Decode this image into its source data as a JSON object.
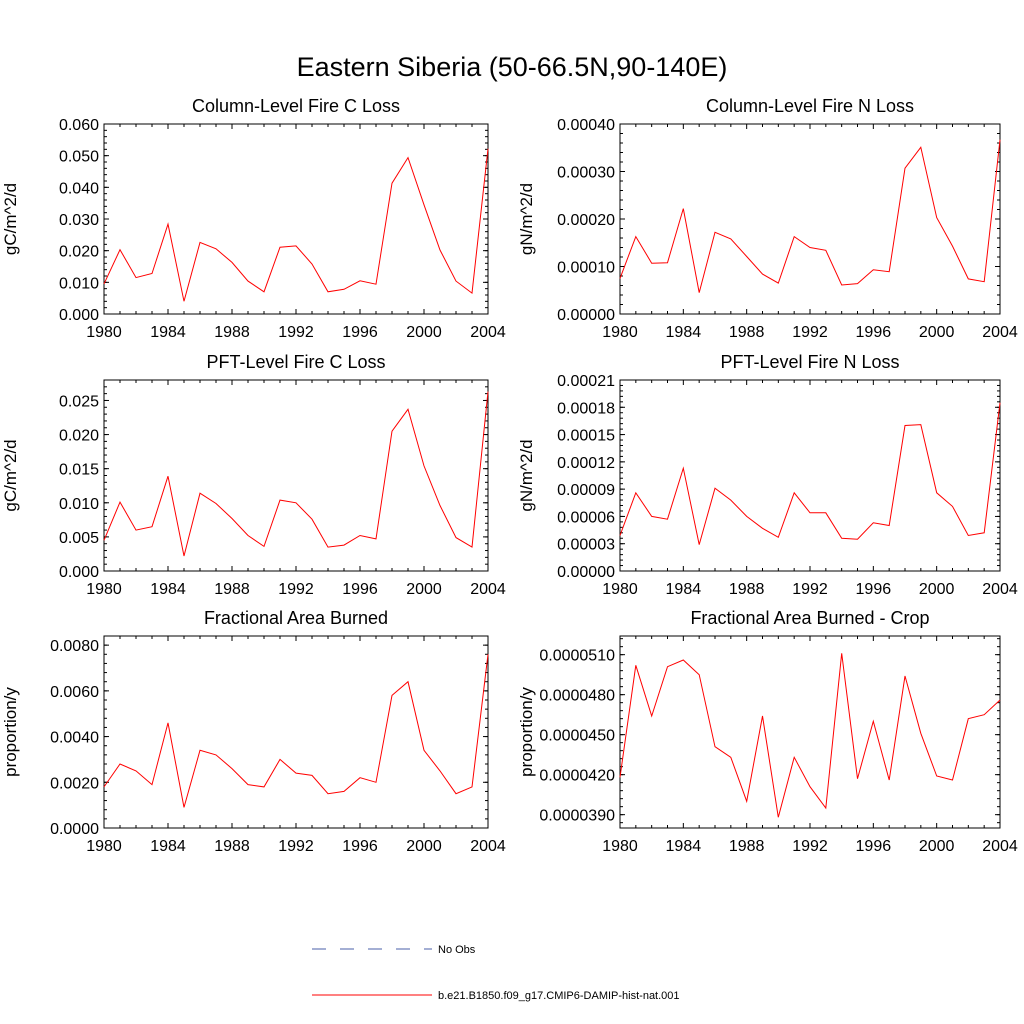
{
  "figure_title": "Eastern Siberia (50-66.5N,90-140E)",
  "colors": {
    "model": "#ff0000",
    "obs": "#4a5fa8",
    "frame": "#000000"
  },
  "legend": {
    "obs_label": "No Obs",
    "model_label": "b.e21.B1850.f09_g17.CMIP6-DAMIP-hist-nat.001"
  },
  "chart_data": [
    {
      "type": "line",
      "title": "Column-Level Fire C Loss",
      "ylabel": "gC/m^2/d",
      "xlim": [
        1980,
        2004
      ],
      "ylim": [
        0,
        0.06
      ],
      "xticks": [
        1980,
        1984,
        1988,
        1992,
        1996,
        2000,
        2004
      ],
      "xtick_labels": [
        "1980",
        "1984",
        "1988",
        "1992",
        "1996",
        "2000",
        "2004"
      ],
      "yticks": [
        0,
        0.01,
        0.02,
        0.03,
        0.04,
        0.05,
        0.06
      ],
      "ytick_labels": [
        "0.000",
        "0.010",
        "0.020",
        "0.030",
        "0.040",
        "0.050",
        "0.060"
      ],
      "x": [
        1980,
        1981,
        1982,
        1983,
        1984,
        1985,
        1986,
        1987,
        1988,
        1989,
        1990,
        1991,
        1992,
        1993,
        1994,
        1995,
        1996,
        1997,
        1998,
        1999,
        2000,
        2001,
        2002,
        2003,
        2004
      ],
      "series": [
        {
          "values": [
            0.0095,
            0.0203,
            0.0115,
            0.0128,
            0.0284,
            0.004,
            0.0226,
            0.0206,
            0.0163,
            0.0104,
            0.007,
            0.0211,
            0.0215,
            0.0158,
            0.007,
            0.0078,
            0.0105,
            0.0094,
            0.0413,
            0.0494,
            0.0345,
            0.0202,
            0.0104,
            0.0066,
            0.0522
          ]
        }
      ]
    },
    {
      "type": "line",
      "title": "Column-Level Fire N Loss",
      "ylabel": "gN/m^2/d",
      "xlim": [
        1980,
        2004
      ],
      "ylim": [
        0,
        0.0004
      ],
      "xticks": [
        1980,
        1984,
        1988,
        1992,
        1996,
        2000,
        2004
      ],
      "xtick_labels": [
        "1980",
        "1984",
        "1988",
        "1992",
        "1996",
        "2000",
        "2004"
      ],
      "yticks": [
        0,
        0.0001,
        0.0002,
        0.0003,
        0.0004
      ],
      "ytick_labels": [
        "0.00000",
        "0.00010",
        "0.00020",
        "0.00030",
        "0.00040"
      ],
      "x": [
        1980,
        1981,
        1982,
        1983,
        1984,
        1985,
        1986,
        1987,
        1988,
        1989,
        1990,
        1991,
        1992,
        1993,
        1994,
        1995,
        1996,
        1997,
        1998,
        1999,
        2000,
        2001,
        2002,
        2003,
        2004
      ],
      "series": [
        {
          "values": [
            7.5e-05,
            0.000163,
            0.000107,
            0.000108,
            0.000222,
            4.5e-05,
            0.000172,
            0.000158,
            0.000121,
            8.4e-05,
            6.5e-05,
            0.000163,
            0.00014,
            0.000134,
            6.1e-05,
            6.4e-05,
            9.3e-05,
            8.9e-05,
            0.000307,
            0.000351,
            0.000203,
            0.000143,
            7.4e-05,
            6.8e-05,
            0.000367
          ]
        }
      ]
    },
    {
      "type": "line",
      "title": "PFT-Level Fire C Loss",
      "ylabel": "gC/m^2/d",
      "xlim": [
        1980,
        2004
      ],
      "ylim": [
        0,
        0.028
      ],
      "xticks": [
        1980,
        1984,
        1988,
        1992,
        1996,
        2000,
        2004
      ],
      "xtick_labels": [
        "1980",
        "1984",
        "1988",
        "1992",
        "1996",
        "2000",
        "2004"
      ],
      "yticks": [
        0,
        0.005,
        0.01,
        0.015,
        0.02,
        0.025
      ],
      "ytick_labels": [
        "0.000",
        "0.005",
        "0.010",
        "0.015",
        "0.020",
        "0.025"
      ],
      "x": [
        1980,
        1981,
        1982,
        1983,
        1984,
        1985,
        1986,
        1987,
        1988,
        1989,
        1990,
        1991,
        1992,
        1993,
        1994,
        1995,
        1996,
        1997,
        1998,
        1999,
        2000,
        2001,
        2002,
        2003,
        2004
      ],
      "series": [
        {
          "values": [
            0.0045,
            0.0101,
            0.006,
            0.0065,
            0.0139,
            0.0022,
            0.0114,
            0.0099,
            0.0077,
            0.0052,
            0.0036,
            0.0104,
            0.01,
            0.0076,
            0.0035,
            0.0038,
            0.0052,
            0.0047,
            0.0205,
            0.0237,
            0.0154,
            0.0096,
            0.0049,
            0.0035,
            0.0263
          ]
        }
      ]
    },
    {
      "type": "line",
      "title": "PFT-Level Fire N Loss",
      "ylabel": "gN/m^2/d",
      "xlim": [
        1980,
        2004
      ],
      "ylim": [
        0,
        0.00021
      ],
      "xticks": [
        1980,
        1984,
        1988,
        1992,
        1996,
        2000,
        2004
      ],
      "xtick_labels": [
        "1980",
        "1984",
        "1988",
        "1992",
        "1996",
        "2000",
        "2004"
      ],
      "yticks": [
        0,
        3e-05,
        6e-05,
        9e-05,
        0.00012,
        0.00015,
        0.00018,
        0.00021
      ],
      "ytick_labels": [
        "0.00000",
        "0.00003",
        "0.00006",
        "0.00009",
        "0.00012",
        "0.00015",
        "0.00018",
        "0.00021"
      ],
      "x": [
        1980,
        1981,
        1982,
        1983,
        1984,
        1985,
        1986,
        1987,
        1988,
        1989,
        1990,
        1991,
        1992,
        1993,
        1994,
        1995,
        1996,
        1997,
        1998,
        1999,
        2000,
        2001,
        2002,
        2003,
        2004
      ],
      "series": [
        {
          "values": [
            3.9e-05,
            8.6e-05,
            6e-05,
            5.7e-05,
            0.000113,
            2.9e-05,
            9.1e-05,
            7.8e-05,
            6e-05,
            4.7e-05,
            3.7e-05,
            8.6e-05,
            6.4e-05,
            6.4e-05,
            3.6e-05,
            3.5e-05,
            5.3e-05,
            5e-05,
            0.00016,
            0.000161,
            8.6e-05,
            7.1e-05,
            3.9e-05,
            4.2e-05,
            0.000185
          ]
        }
      ]
    },
    {
      "type": "line",
      "title": "Fractional Area Burned",
      "ylabel": "proportion/y",
      "xlim": [
        1980,
        2004
      ],
      "ylim": [
        0,
        0.0084
      ],
      "xticks": [
        1980,
        1984,
        1988,
        1992,
        1996,
        2000,
        2004
      ],
      "xtick_labels": [
        "1980",
        "1984",
        "1988",
        "1992",
        "1996",
        "2000",
        "2004"
      ],
      "yticks": [
        0,
        0.002,
        0.004,
        0.006,
        0.008
      ],
      "ytick_labels": [
        "0.0000",
        "0.0020",
        "0.0040",
        "0.0060",
        "0.0080"
      ],
      "x": [
        1980,
        1981,
        1982,
        1983,
        1984,
        1985,
        1986,
        1987,
        1988,
        1989,
        1990,
        1991,
        1992,
        1993,
        1994,
        1995,
        1996,
        1997,
        1998,
        1999,
        2000,
        2001,
        2002,
        2003,
        2004
      ],
      "series": [
        {
          "values": [
            0.0018,
            0.0028,
            0.0025,
            0.0019,
            0.0046,
            0.0009,
            0.0034,
            0.0032,
            0.0026,
            0.0019,
            0.0018,
            0.003,
            0.0024,
            0.0023,
            0.0015,
            0.0016,
            0.0022,
            0.002,
            0.0058,
            0.0064,
            0.0034,
            0.0025,
            0.0015,
            0.0018,
            0.0076
          ]
        }
      ]
    },
    {
      "type": "line",
      "title": "Fractional Area Burned - Crop",
      "ylabel": "proportion/y",
      "xlim": [
        1980,
        2004
      ],
      "ylim": [
        3.8e-05,
        5.24e-05
      ],
      "xticks": [
        1980,
        1984,
        1988,
        1992,
        1996,
        2000,
        2004
      ],
      "xtick_labels": [
        "1980",
        "1984",
        "1988",
        "1992",
        "1996",
        "2000",
        "2004"
      ],
      "yticks": [
        3.9e-05,
        4.2e-05,
        4.5e-05,
        4.8e-05,
        5.1e-05
      ],
      "ytick_labels": [
        "0.0000390",
        "0.0000420",
        "0.0000450",
        "0.0000480",
        "0.0000510"
      ],
      "x": [
        1980,
        1981,
        1982,
        1983,
        1984,
        1985,
        1986,
        1987,
        1988,
        1989,
        1990,
        1991,
        1992,
        1993,
        1994,
        1995,
        1996,
        1997,
        1998,
        1999,
        2000,
        2001,
        2002,
        2003,
        2004
      ],
      "series": [
        {
          "values": [
            4.18e-05,
            5.02e-05,
            4.64e-05,
            5.01e-05,
            5.06e-05,
            4.95e-05,
            4.41e-05,
            4.33e-05,
            4e-05,
            4.64e-05,
            3.88e-05,
            4.33e-05,
            4.11e-05,
            3.95e-05,
            5.11e-05,
            4.17e-05,
            4.6e-05,
            4.16e-05,
            4.94e-05,
            4.51e-05,
            4.19e-05,
            4.16e-05,
            4.62e-05,
            4.65e-05,
            4.76e-05
          ]
        }
      ]
    }
  ]
}
